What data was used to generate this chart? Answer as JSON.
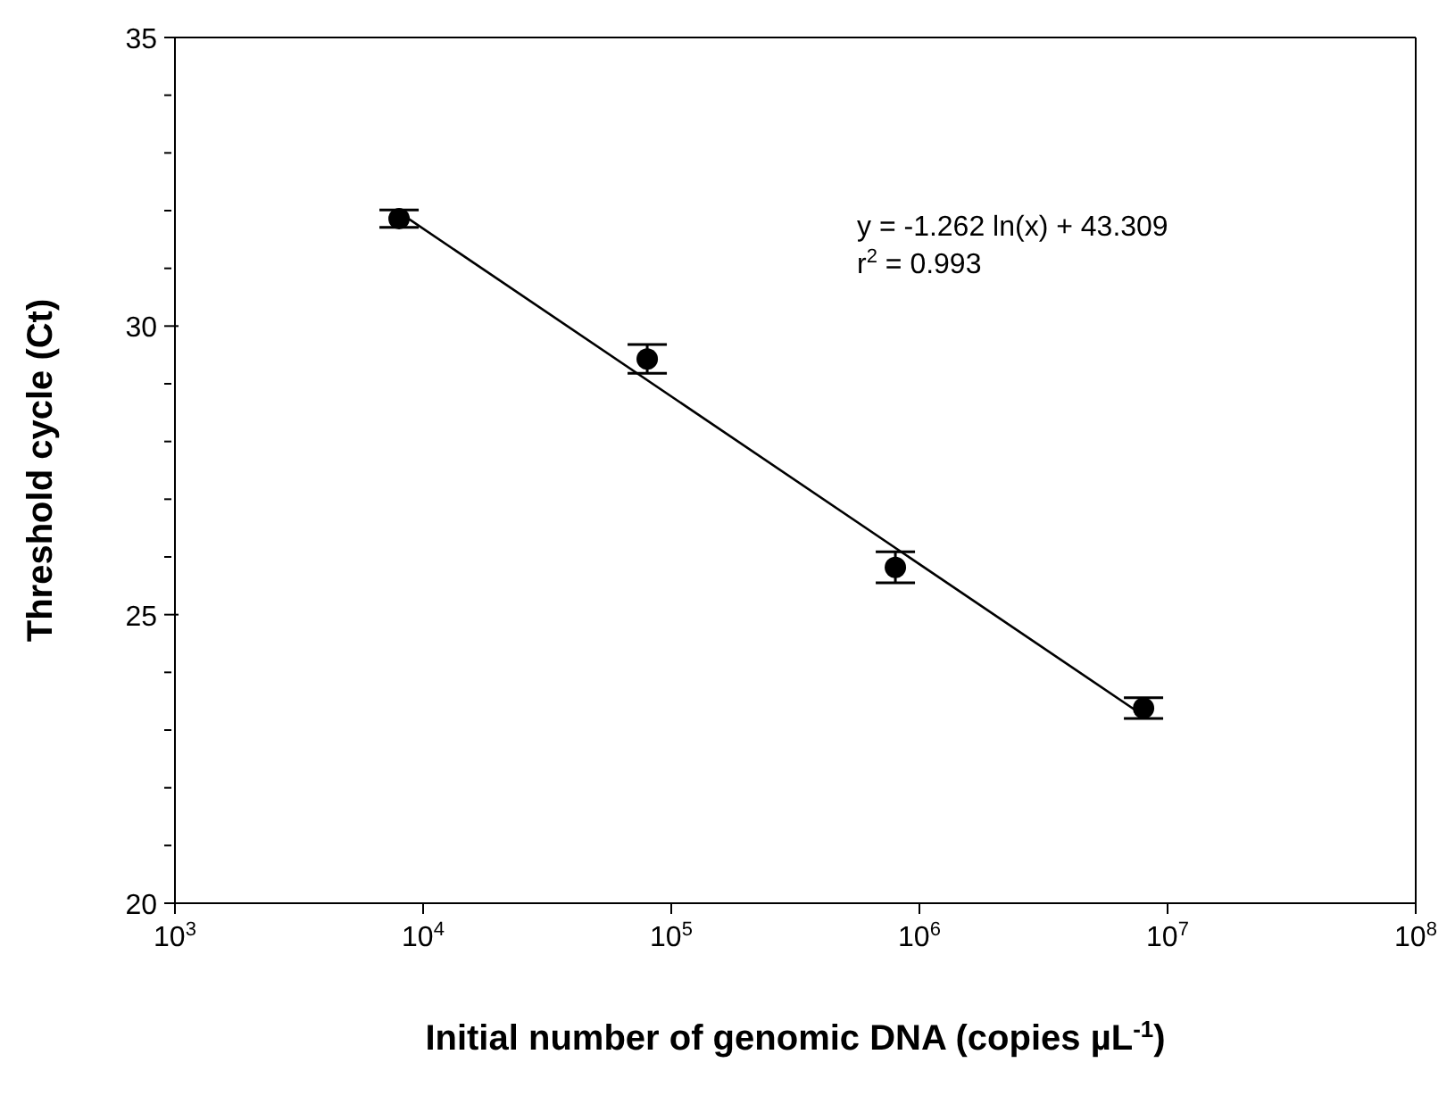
{
  "chart_data": {
    "type": "scatter",
    "xlabel": "Initial number of genomic DNA (copies µL$^{-1}$)",
    "ylabel": "Threshold cycle (Ct)",
    "log": "x",
    "xlim": [
      1000,
      100000000
    ],
    "ylim": [
      20,
      35
    ],
    "xticks": [
      {
        "value": 1000,
        "label": "10$^{3}$"
      },
      {
        "value": 10000,
        "label": "10$^{4}$"
      },
      {
        "value": 100000,
        "label": "10$^{5}$"
      },
      {
        "value": 1000000,
        "label": "10$^{6}$"
      },
      {
        "value": 10000000,
        "label": "10$^{7}$"
      },
      {
        "value": 100000000,
        "label": "10$^{8}$"
      }
    ],
    "yticks": [
      20,
      {
        "value": 21,
        "label": null
      },
      {
        "value": 22,
        "label": null
      },
      {
        "value": 23,
        "label": null
      },
      {
        "value": 24,
        "label": null
      },
      25,
      {
        "value": 26,
        "label": null
      },
      {
        "value": 27,
        "label": null
      },
      {
        "value": 28,
        "label": null
      },
      {
        "value": 29,
        "label": null
      },
      30,
      {
        "value": 31,
        "label": null
      },
      {
        "value": 32,
        "label": null
      },
      {
        "value": 33,
        "label": null
      },
      {
        "value": 34,
        "label": null
      },
      35
    ],
    "grid": false,
    "marker": "circle",
    "series": [
      {
        "color": "#000000",
        "x": [
          8000,
          80000,
          800000,
          8000000
        ],
        "values": [
          31.86,
          29.43,
          25.82,
          23.38
        ],
        "errors": [
          0.15,
          0.25,
          0.27,
          0.18
        ]
      },
      {
        "type": "line",
        "color": "#000000",
        "line_style": "solid",
        "marker": "none",
        "x": [
          8000,
          8000000
        ],
        "values": [
          31.97,
          23.25
        ]
      }
    ],
    "annotations": [
      "y = -1.262 ln(x) + 43.309",
      "r$^{2}$ = 0.993"
    ]
  }
}
